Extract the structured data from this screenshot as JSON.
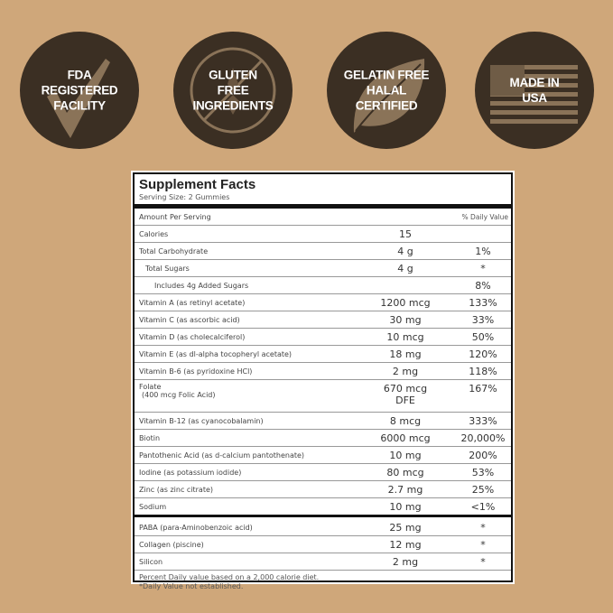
{
  "badges": [
    {
      "icon": "checkmark-icon",
      "lines": [
        "FDA",
        "REGISTERED",
        "FACILITY"
      ]
    },
    {
      "icon": "no-wheat-icon",
      "lines": [
        "GLUTEN",
        "FREE",
        "INGREDIENTS"
      ]
    },
    {
      "icon": "leaf-icon",
      "lines": [
        "GELATIN FREE",
        "HALAL",
        "CERTIFIED"
      ]
    },
    {
      "icon": "us-flag-icon",
      "lines": [
        "MADE IN",
        "USA"
      ]
    }
  ],
  "colors": {
    "background": "#cfa77a",
    "badge": "#3b2f23",
    "icon_tint": "#8a7358"
  },
  "facts": {
    "title": "Supplement Facts",
    "serving": "Serving Size: 2 Gummies",
    "amount_header": "Amount Per Serving",
    "dv_header": "% Daily Value",
    "rows": [
      {
        "name": "Calories",
        "amount": "15",
        "dv": ""
      },
      {
        "name": "Total Carbohydrate",
        "amount": "4 g",
        "dv": "1%"
      },
      {
        "name": "Total Sugars",
        "amount": "4 g",
        "dv": "*"
      },
      {
        "name": "Includes 4g Added Sugars",
        "amount": "",
        "dv": "8%"
      },
      {
        "name": "Vitamin A (as retinyl acetate)",
        "amount": "1200 mcg",
        "dv": "133%"
      },
      {
        "name": "Vitamin C (as ascorbic acid)",
        "amount": "30 mg",
        "dv": "33%"
      },
      {
        "name": "Vitamin D (as cholecalciferol)",
        "amount": "10 mcg",
        "dv": "50%"
      },
      {
        "name": "Vitamin E (as dl-alpha tocopheryl acetate)",
        "amount": "18 mg",
        "dv": "120%"
      },
      {
        "name": "Vitamin B-6 (as pyridoxine HCl)",
        "amount": "2 mg",
        "dv": "118%"
      },
      {
        "name": "Folate",
        "sub": "(400 mcg Folic Acid)",
        "amount": "670 mcg",
        "amount2": "DFE",
        "dv": "167%"
      },
      {
        "name": "Vitamin B-12 (as cyanocobalamin)",
        "amount": "8 mcg",
        "dv": "333%"
      },
      {
        "name": "Biotin",
        "amount": "6000 mcg",
        "dv": "20,000%"
      },
      {
        "name": "Pantothenic Acid (as d-calcium pantothenate)",
        "amount": "10 mg",
        "dv": "200%"
      },
      {
        "name": "Iodine (as potassium iodide)",
        "amount": "80 mcg",
        "dv": "53%"
      },
      {
        "name": "Zinc (as zinc citrate)",
        "amount": "2.7 mg",
        "dv": "25%"
      },
      {
        "name": "Sodium",
        "amount": "10 mg",
        "dv": "<1%"
      },
      {
        "name": "PABA (para-Aminobenzoic acid)",
        "amount": "25 mg",
        "dv": "*"
      },
      {
        "name": "Collagen (piscine)",
        "amount": "12 mg",
        "dv": "*"
      },
      {
        "name": "Silicon",
        "amount": "2 mg",
        "dv": "*"
      }
    ],
    "footnote1": "Percent Daily value based on a 2,000 calorie diet.",
    "footnote2": "*Daily Value not established."
  }
}
